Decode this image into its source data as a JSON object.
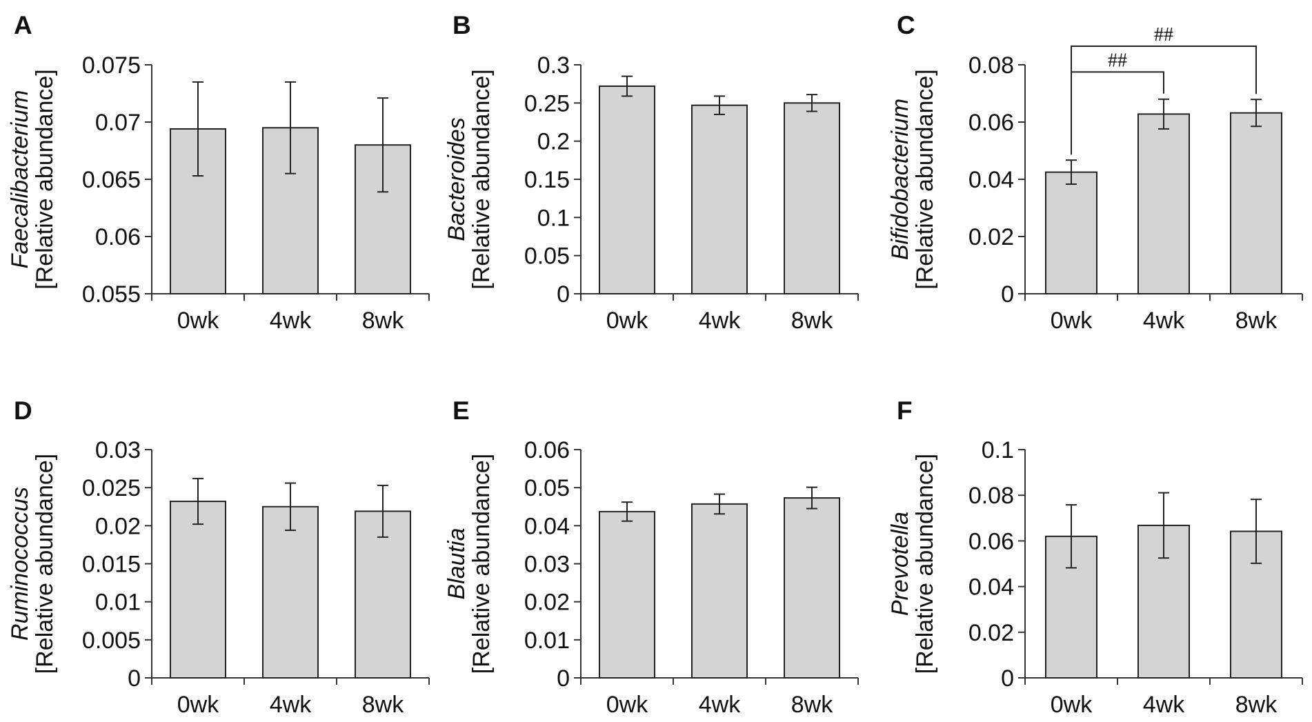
{
  "chart_data": [
    {
      "panel": "A",
      "type": "bar",
      "genus": "Faecalibacterium",
      "ylabel_unit": "[Relative abundance]",
      "categories": [
        "0wk",
        "4wk",
        "8wk"
      ],
      "values": [
        0.0694,
        0.0695,
        0.068
      ],
      "errors": [
        0.0041,
        0.004,
        0.0041
      ],
      "ylim": [
        0.055,
        0.075
      ],
      "yticks": [
        0.055,
        0.06,
        0.065,
        0.07,
        0.075
      ],
      "ytick_labels": [
        "0.055",
        "0.06",
        "0.065",
        "0.07",
        "0.075"
      ],
      "bar_color": "#d4d4d4",
      "significance": []
    },
    {
      "panel": "B",
      "type": "bar",
      "genus": "Bacteroides",
      "ylabel_unit": "[Relative abundance]",
      "categories": [
        "0wk",
        "4wk",
        "8wk"
      ],
      "values": [
        0.272,
        0.247,
        0.25
      ],
      "errors": [
        0.013,
        0.012,
        0.011
      ],
      "ylim": [
        0,
        0.3
      ],
      "yticks": [
        0,
        0.05,
        0.1,
        0.15,
        0.2,
        0.25,
        0.3
      ],
      "ytick_labels": [
        "0",
        "0.05",
        "0.1",
        "0.15",
        "0.2",
        "0.25",
        "0.3"
      ],
      "bar_color": "#d4d4d4",
      "significance": []
    },
    {
      "panel": "C",
      "type": "bar",
      "genus": "Bifidobacterium",
      "ylabel_unit": "[Relative abundance]",
      "categories": [
        "0wk",
        "4wk",
        "8wk"
      ],
      "values": [
        0.0425,
        0.0628,
        0.0632
      ],
      "errors": [
        0.0042,
        0.0052,
        0.0047
      ],
      "ylim": [
        0,
        0.08
      ],
      "yticks": [
        0,
        0.02,
        0.04,
        0.06,
        0.08
      ],
      "ytick_labels": [
        "0",
        "0.02",
        "0.04",
        "0.06",
        "0.08"
      ],
      "bar_color": "#d4d4d4",
      "significance": [
        {
          "from": 0,
          "to": 1,
          "label": "##",
          "level": 0.0775
        },
        {
          "from": 0,
          "to": 2,
          "label": "##",
          "level": 0.0865
        }
      ]
    },
    {
      "panel": "D",
      "type": "bar",
      "genus": "Ruminococcus",
      "ylabel_unit": "[Relative abundance]",
      "categories": [
        "0wk",
        "4wk",
        "8wk"
      ],
      "values": [
        0.0232,
        0.0225,
        0.0219
      ],
      "errors": [
        0.003,
        0.0031,
        0.0034
      ],
      "ylim": [
        0,
        0.03
      ],
      "yticks": [
        0,
        0.005,
        0.01,
        0.015,
        0.02,
        0.025,
        0.03
      ],
      "ytick_labels": [
        "0",
        "0.005",
        "0.01",
        "0.015",
        "0.02",
        "0.025",
        "0.03"
      ],
      "bar_color": "#d4d4d4",
      "significance": []
    },
    {
      "panel": "E",
      "type": "bar",
      "genus": "Blautia",
      "ylabel_unit": "[Relative abundance]",
      "categories": [
        "0wk",
        "4wk",
        "8wk"
      ],
      "values": [
        0.0437,
        0.0457,
        0.0473
      ],
      "errors": [
        0.0025,
        0.0026,
        0.0028
      ],
      "ylim": [
        0,
        0.06
      ],
      "yticks": [
        0,
        0.01,
        0.02,
        0.03,
        0.04,
        0.05,
        0.06
      ],
      "ytick_labels": [
        "0",
        "0.01",
        "0.02",
        "0.03",
        "0.04",
        "0.05",
        "0.06"
      ],
      "bar_color": "#d4d4d4",
      "significance": []
    },
    {
      "panel": "F",
      "type": "bar",
      "genus": "Prevotella",
      "ylabel_unit": "[Relative abundance]",
      "categories": [
        "0wk",
        "4wk",
        "8wk"
      ],
      "values": [
        0.062,
        0.0668,
        0.0642
      ],
      "errors": [
        0.0138,
        0.0143,
        0.014
      ],
      "ylim": [
        0,
        0.1
      ],
      "yticks": [
        0,
        0.02,
        0.04,
        0.06,
        0.08,
        0.1
      ],
      "ytick_labels": [
        "0",
        "0.02",
        "0.04",
        "0.06",
        "0.08",
        "0.1"
      ],
      "bar_color": "#d4d4d4",
      "significance": []
    }
  ]
}
